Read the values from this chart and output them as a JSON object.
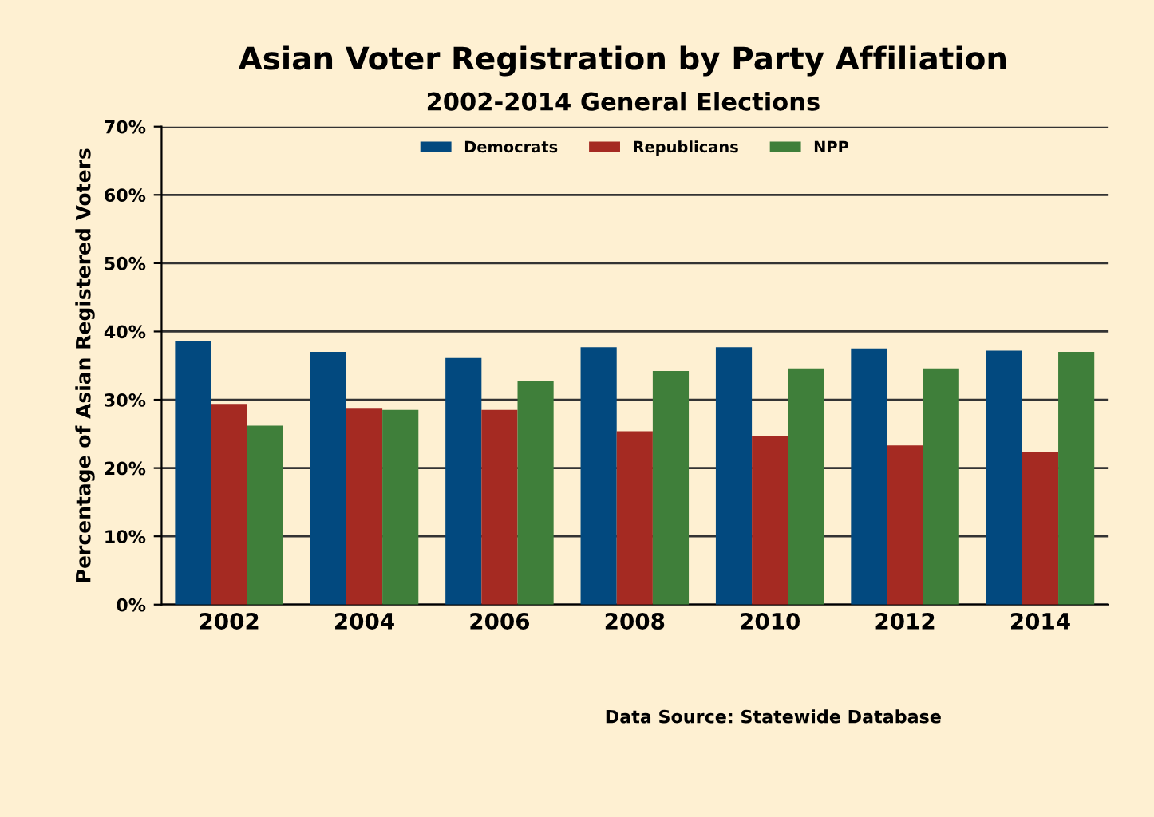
{
  "chart_data": {
    "type": "bar",
    "title": "Asian Voter Registration by Party Affiliation",
    "subtitle": "2002-2014 General Elections",
    "ylabel": "Percentage of Asian Registered Voters",
    "categories": [
      "2002",
      "2004",
      "2006",
      "2008",
      "2010",
      "2012",
      "2014"
    ],
    "series": [
      {
        "name": "Democrats",
        "color": "#02497f",
        "values": [
          38.6,
          37.0,
          36.1,
          37.7,
          37.7,
          37.5,
          37.2
        ]
      },
      {
        "name": "Republicans",
        "color": "#a52a22",
        "values": [
          29.4,
          28.7,
          28.5,
          25.4,
          24.7,
          23.3,
          22.4
        ]
      },
      {
        "name": "NPP",
        "color": "#3f7f3a",
        "values": [
          26.2,
          28.5,
          32.8,
          34.2,
          34.6,
          34.6,
          37.0
        ]
      }
    ],
    "ylim": [
      0,
      70
    ],
    "yticks": [
      {
        "value": 0,
        "label": "0%"
      },
      {
        "value": 10,
        "label": "10%"
      },
      {
        "value": 20,
        "label": "20%"
      },
      {
        "value": 30,
        "label": "30%"
      },
      {
        "value": 40,
        "label": "40%"
      },
      {
        "value": 50,
        "label": "50%"
      },
      {
        "value": 60,
        "label": "60%"
      },
      {
        "value": 70,
        "label": "70%"
      }
    ],
    "grid": "y",
    "legend": "top",
    "annotations": [
      "Data Source: Statewide Database"
    ]
  }
}
